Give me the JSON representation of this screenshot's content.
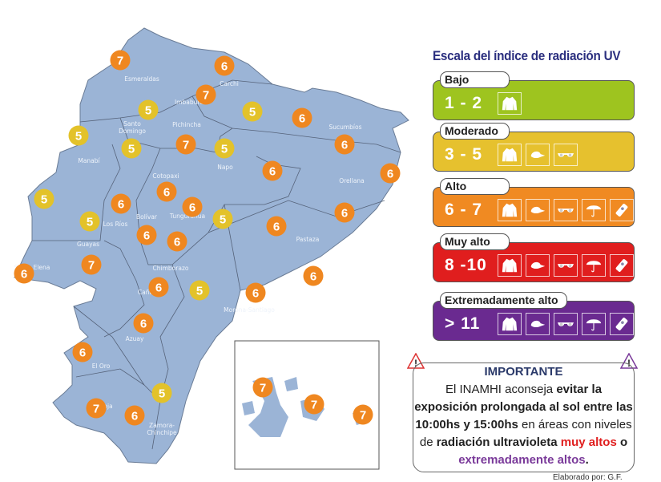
{
  "map": {
    "colors": {
      "land": "#9bb4d6",
      "border": "#56637a",
      "moderate": "#e3c22a",
      "high": "#ef8720"
    },
    "provinces": [
      "Esmeraldas",
      "Carchi",
      "Imbabura",
      "Santo",
      "Domingo",
      "Pichincha",
      "Manabí",
      "Cotopaxi",
      "Napo",
      "Sucumbíos",
      "Orellana",
      "Bolívar",
      "Los Ríos",
      "Tungurahua",
      "Pastaza",
      "Guayas",
      "Santa Elena",
      "Chimborazo",
      "Cañar",
      "Morona-Santiago",
      "Azuay",
      "El Oro",
      "Loja",
      "Zamora-",
      "Chinchipe"
    ],
    "uv_values": [
      7,
      6,
      5,
      7,
      5,
      6,
      5,
      5,
      7,
      5,
      6,
      6,
      6,
      5,
      6,
      6,
      6,
      5,
      5,
      6,
      6,
      6,
      6,
      7,
      6,
      6,
      6,
      5,
      6,
      6,
      6,
      5,
      7,
      6
    ],
    "galapagos_values": [
      7,
      7,
      7
    ]
  },
  "legend": {
    "title": "Escala del índice de radiación UV",
    "levels": [
      {
        "name": "Bajo",
        "range": "1 - 2",
        "color": "#9ec41f",
        "icons": [
          "jacket-icon"
        ]
      },
      {
        "name": "Moderado",
        "range": "3 - 5",
        "color": "#e6c12e",
        "icons": [
          "jacket-icon",
          "cap-icon",
          "sunglasses-icon"
        ]
      },
      {
        "name": "Alto",
        "range": "6 - 7",
        "color": "#f08a22",
        "icons": [
          "jacket-icon",
          "cap-icon",
          "sunglasses-icon",
          "umbrella-icon",
          "sunscreen-icon"
        ]
      },
      {
        "name": "Muy alto",
        "range": "8 -10",
        "color": "#e01e1e",
        "icons": [
          "jacket-icon",
          "cap-icon",
          "sunglasses-icon",
          "umbrella-icon",
          "sunscreen-icon"
        ]
      },
      {
        "name": "Extremadamente alto",
        "range": "> 11",
        "color": "#6a2a90",
        "icons": [
          "jacket-icon",
          "cap-icon",
          "sunglasses-icon",
          "umbrella-icon",
          "sunscreen-icon"
        ]
      }
    ]
  },
  "notice": {
    "heading": "IMPORTANTE",
    "p1": "El INAMHI aconseja ",
    "b1": "evitar la exposición prolongada al sol entre las 10:00hs y 15:00hs",
    "p2": " en áreas con niveles de ",
    "b2": "radiación ultravioleta",
    "red": " muy altos",
    "p3": " o ",
    "purple": "extremadamente altos",
    "end": "."
  },
  "credit": "Elaborado por: G.F."
}
